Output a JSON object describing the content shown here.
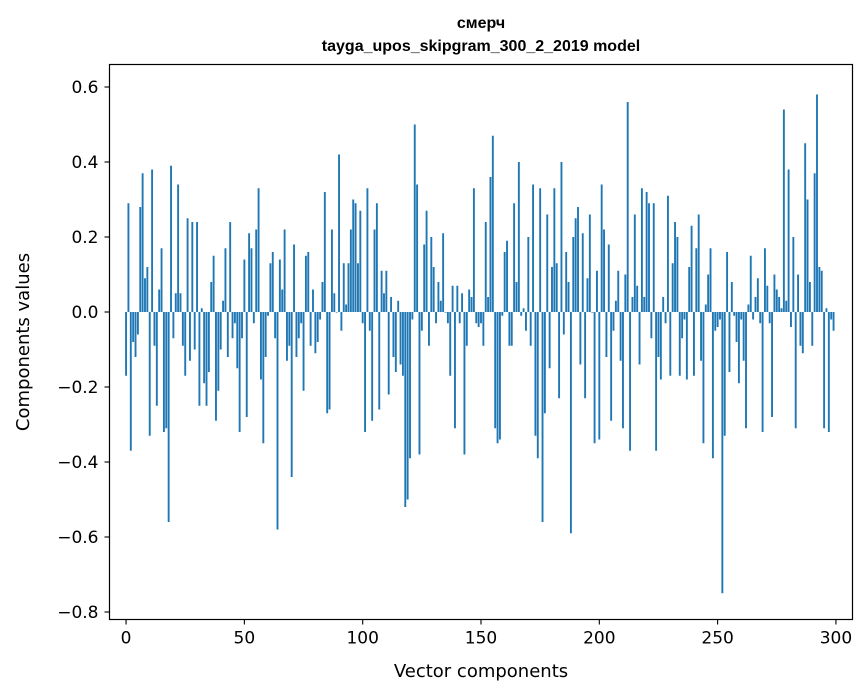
{
  "chart_data": {
    "type": "bar",
    "title": "смерч",
    "subtitle": "tayga_upos_skipgram_300_2_2019 model",
    "xlabel": "Vector components",
    "ylabel": "Components values",
    "xlim": [
      -7,
      307
    ],
    "ylim": [
      -0.82,
      0.66
    ],
    "xticks": [
      0,
      50,
      100,
      150,
      200,
      250,
      300
    ],
    "yticks": [
      -0.8,
      -0.6,
      -0.4,
      -0.2,
      0.0,
      0.2,
      0.4,
      0.6
    ],
    "ytick_labels": [
      "−0.8",
      "−0.6",
      "−0.4",
      "−0.2",
      "0.0",
      "0.2",
      "0.4",
      "0.6"
    ],
    "bar_color": "#1f77b4",
    "grid": false,
    "values": [
      -0.17,
      0.29,
      -0.37,
      -0.08,
      -0.12,
      -0.06,
      0.28,
      0.37,
      0.09,
      0.12,
      -0.33,
      0.38,
      -0.09,
      -0.25,
      0.06,
      0.17,
      -0.32,
      -0.31,
      -0.56,
      0.39,
      -0.07,
      0.05,
      0.34,
      0.05,
      -0.09,
      -0.17,
      0.25,
      -0.13,
      0.24,
      -0.1,
      0.24,
      -0.25,
      0.01,
      -0.19,
      -0.25,
      -0.16,
      0.08,
      0.15,
      -0.29,
      -0.21,
      -0.1,
      0.03,
      0.17,
      -0.12,
      0.24,
      -0.07,
      -0.03,
      -0.15,
      -0.32,
      -0.07,
      0.14,
      -0.28,
      0.21,
      0.17,
      -0.03,
      0.22,
      0.33,
      -0.18,
      -0.35,
      -0.12,
      -0.01,
      0.13,
      0.16,
      -0.07,
      -0.58,
      0.14,
      0.06,
      0.22,
      -0.13,
      -0.09,
      -0.44,
      0.18,
      -0.12,
      -0.07,
      -0.03,
      -0.21,
      0.15,
      0.16,
      -0.09,
      0.06,
      -0.11,
      -0.08,
      -0.02,
      0.08,
      0.32,
      -0.27,
      -0.26,
      0.22,
      0.05,
      0.0,
      0.42,
      -0.05,
      0.13,
      0.02,
      0.13,
      0.22,
      0.3,
      0.29,
      0.13,
      0.27,
      -0.03,
      -0.32,
      0.33,
      -0.05,
      -0.29,
      0.22,
      0.29,
      -0.26,
      0.11,
      0.05,
      0.11,
      -0.22,
      0.04,
      -0.12,
      -0.16,
      0.03,
      -0.14,
      -0.17,
      -0.52,
      -0.5,
      -0.39,
      -0.02,
      0.5,
      0.34,
      -0.38,
      -0.05,
      0.18,
      0.27,
      -0.09,
      0.2,
      0.12,
      -0.03,
      0.08,
      0.03,
      0.21,
      0.0,
      -0.03,
      -0.17,
      0.07,
      -0.31,
      0.07,
      -0.03,
      0.05,
      -0.38,
      -0.09,
      0.06,
      0.04,
      0.33,
      -0.03,
      -0.04,
      -0.03,
      -0.09,
      0.24,
      0.04,
      0.36,
      0.47,
      -0.31,
      -0.35,
      -0.34,
      -0.01,
      0.16,
      0.19,
      -0.09,
      -0.09,
      0.29,
      0.08,
      0.4,
      -0.01,
      0.01,
      -0.05,
      0.2,
      -0.09,
      0.34,
      -0.33,
      -0.39,
      0.33,
      -0.56,
      -0.27,
      0.26,
      -0.15,
      0.12,
      0.33,
      0.13,
      -0.23,
      0.4,
      -0.06,
      0.16,
      0.08,
      -0.59,
      0.2,
      0.25,
      0.28,
      -0.14,
      0.21,
      -0.23,
      0.09,
      0.26,
      0.0,
      -0.35,
      0.11,
      -0.34,
      0.34,
      0.22,
      -0.12,
      0.18,
      -0.29,
      -0.05,
      0.03,
      0.11,
      -0.13,
      -0.31,
      0.1,
      0.56,
      -0.37,
      0.04,
      0.26,
      0.07,
      -0.14,
      0.33,
      0.04,
      0.32,
      0.29,
      -0.07,
      0.29,
      -0.37,
      -0.12,
      -0.18,
      0.04,
      -0.03,
      0.31,
      -0.17,
      0.13,
      0.24,
      0.2,
      -0.17,
      -0.07,
      -0.02,
      -0.18,
      0.12,
      0.23,
      -0.17,
      0.17,
      0.26,
      -0.13,
      -0.35,
      0.02,
      0.1,
      0.17,
      -0.39,
      -0.05,
      -0.04,
      -0.02,
      -0.75,
      -0.33,
      0.16,
      -0.16,
      0.08,
      -0.01,
      -0.08,
      -0.19,
      -0.02,
      -0.13,
      -0.31,
      0.02,
      0.15,
      -0.02,
      0.04,
      0.09,
      -0.03,
      -0.32,
      0.17,
      0.07,
      -0.03,
      -0.28,
      0.1,
      0.06,
      0.04,
      0.01,
      0.54,
      0.03,
      0.38,
      -0.04,
      0.2,
      -0.31,
      0.1,
      -0.09,
      -0.11,
      0.45,
      0.3,
      0.08,
      -0.09,
      0.37,
      0.58,
      0.12,
      0.11,
      -0.31,
      0.01,
      -0.32,
      -0.02,
      -0.05
    ]
  }
}
